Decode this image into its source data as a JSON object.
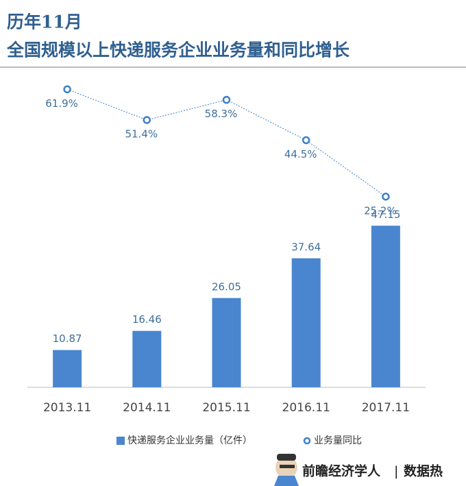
{
  "chart_data": {
    "type": "bar",
    "title": "历年11月",
    "subtitle": "全国规模以上快递服务企业业务量和同比增长",
    "categories": [
      "2013.11",
      "2014.11",
      "2015.11",
      "2016.11",
      "2017.11"
    ],
    "series": [
      {
        "name": "快递服务企业业务量（亿件）",
        "color": "#4a86d0",
        "values": [
          10.87,
          16.46,
          26.05,
          37.64,
          47.15
        ]
      },
      {
        "name": "业务量同比",
        "color": "#3c7fc9",
        "type": "line",
        "axis": "y2",
        "values": [
          61.9,
          51.4,
          58.3,
          44.5,
          25.2
        ],
        "value_labels": [
          "61.9%",
          "51.4%",
          "58.3%",
          "44.5%",
          "25.2%"
        ]
      }
    ],
    "ylim": [
      0,
      93
    ],
    "y2lim": [
      -40,
      69
    ]
  },
  "footer": {
    "brand": "前瞻经济学人",
    "separator": "|",
    "tag": "数据热"
  }
}
